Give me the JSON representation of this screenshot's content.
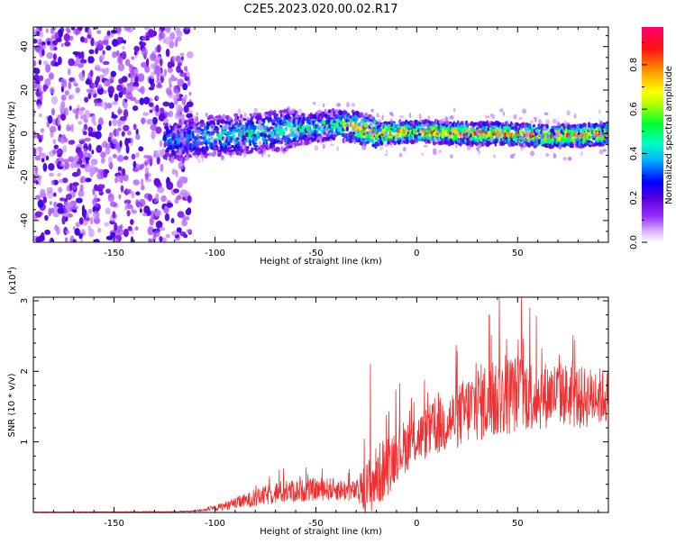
{
  "title": "C2E5.2023.020.00.02.R17",
  "chart_data": [
    {
      "type": "heatmap",
      "xlabel": "Height of straight line (km)",
      "ylabel": "Frequency (Hz)",
      "xlim": [
        -190,
        95
      ],
      "ylim": [
        -50,
        49
      ],
      "xticks": [
        -150,
        -100,
        -50,
        0,
        50
      ],
      "yticks": [
        -40,
        -20,
        0,
        20,
        40
      ],
      "grid": false,
      "colorbar": {
        "label": "Normalized spectral amplitude",
        "range": [
          0,
          0.97
        ],
        "ticks": [
          "0.0",
          "0.2",
          "0.4",
          "0.6",
          "0.8"
        ],
        "colormap": [
          "#d8b4ff",
          "#7a00e6",
          "#0000ff",
          "#00c0ff",
          "#00ff60",
          "#ffff00",
          "#ff8000",
          "#ff0000",
          "#ff0080"
        ]
      },
      "ridge": {
        "x": [
          -120,
          -100,
          -80,
          -60,
          -40,
          -30,
          -20,
          0,
          20,
          40,
          60,
          80,
          95
        ],
        "frequency": [
          -3,
          -1,
          0,
          2,
          4,
          3,
          0,
          1,
          0,
          0,
          -1,
          -1,
          0
        ],
        "peak_amplitude": [
          0.3,
          0.4,
          0.45,
          0.45,
          0.5,
          0.8,
          0.85,
          0.8,
          0.85,
          0.85,
          0.85,
          0.85,
          0.85
        ]
      },
      "noise_region_x": [
        -190,
        -118
      ]
    },
    {
      "type": "line",
      "xlabel": "Height of straight line (km)",
      "ylabel": "SNR (10 * v/v)",
      "yscale_note": "(x10",
      "yscale_exp": "4",
      "yscale_close": ")",
      "xlim": [
        -190,
        95
      ],
      "ylim": [
        0,
        3.05
      ],
      "xticks": [
        -150,
        -100,
        -50,
        0,
        50
      ],
      "yticks": [
        1,
        2,
        3
      ],
      "grid": false,
      "color": "#f03030",
      "series_envelope": {
        "x": [
          -190,
          -120,
          -110,
          -100,
          -90,
          -80,
          -70,
          -60,
          -50,
          -40,
          -30,
          -25,
          -20,
          -15,
          -10,
          0,
          10,
          20,
          30,
          40,
          50,
          60,
          70,
          80,
          95
        ],
        "mean": [
          0.005,
          0.01,
          0.02,
          0.06,
          0.13,
          0.2,
          0.28,
          0.3,
          0.33,
          0.33,
          0.3,
          0.33,
          0.5,
          0.65,
          0.85,
          1.05,
          1.2,
          1.35,
          1.55,
          1.6,
          1.7,
          1.65,
          1.7,
          1.62,
          1.65
        ],
        "spread": [
          0.003,
          0.005,
          0.01,
          0.04,
          0.08,
          0.12,
          0.16,
          0.16,
          0.16,
          0.16,
          0.14,
          0.4,
          0.45,
          0.45,
          0.4,
          0.35,
          0.4,
          0.45,
          0.55,
          0.6,
          0.55,
          0.5,
          0.45,
          0.45,
          0.4
        ],
        "peaks": [
          {
            "x": -23,
            "y": 2.1
          },
          {
            "x": 36,
            "y": 2.8
          },
          {
            "x": 41,
            "y": 3.05
          },
          {
            "x": 52,
            "y": 3.05
          },
          {
            "x": 56,
            "y": 2.9
          }
        ]
      }
    }
  ]
}
